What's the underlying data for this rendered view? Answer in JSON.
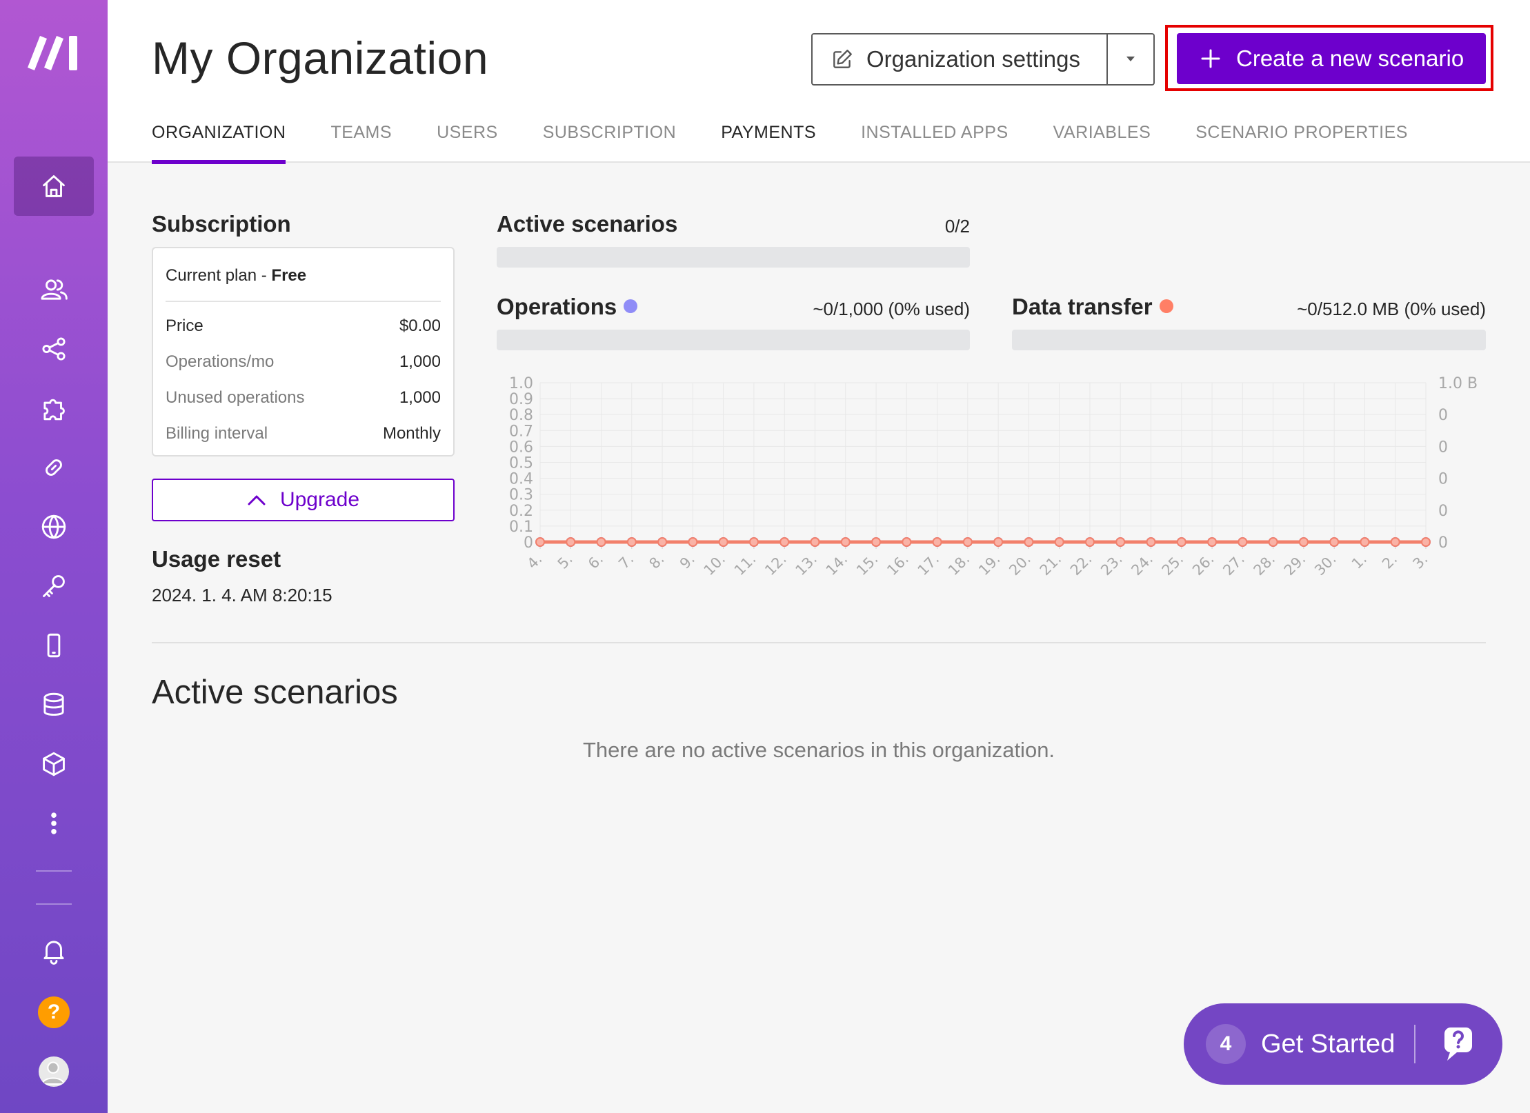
{
  "header": {
    "title": "My Organization",
    "settings_label": "Organization settings",
    "create_label": "Create a new scenario",
    "accent_color": "#6d00cc",
    "highlight_color": "#e50000"
  },
  "tabs": [
    {
      "label": "ORGANIZATION",
      "active": true
    },
    {
      "label": "TEAMS"
    },
    {
      "label": "USERS"
    },
    {
      "label": "SUBSCRIPTION"
    },
    {
      "label": "PAYMENTS"
    },
    {
      "label": "INSTALLED APPS"
    },
    {
      "label": "VARIABLES"
    },
    {
      "label": "SCENARIO PROPERTIES"
    }
  ],
  "sidebar": {
    "items": [
      "home-icon",
      "users-icon",
      "share-icon",
      "puzzle-icon",
      "link-icon",
      "globe-icon",
      "key-icon",
      "mobile-icon",
      "database-icon",
      "box-icon",
      "more-icon"
    ],
    "bottom": [
      "bell-icon",
      "help-icon",
      "avatar"
    ],
    "help_glyph": "?"
  },
  "subscription": {
    "title": "Subscription",
    "plan_prefix": "Current plan - ",
    "plan_name": "Free",
    "rows": [
      {
        "key": "Price",
        "value": "$0.00"
      },
      {
        "key": "Operations/mo",
        "value": "1,000"
      },
      {
        "key": "Unused operations",
        "value": "1,000"
      },
      {
        "key": "Billing interval",
        "value": "Monthly"
      }
    ],
    "upgrade_label": "Upgrade"
  },
  "usage_reset": {
    "title": "Usage reset",
    "value": "2024. 1. 4. AM 8:20:15"
  },
  "stats": {
    "active_scenarios": {
      "label": "Active scenarios",
      "value": "0/2",
      "fraction_used": 0
    },
    "operations": {
      "label": "Operations",
      "value": "~0/1,000 (0% used)",
      "dot_color": "#8f8cf7",
      "fraction_used": 0
    },
    "data_transfer": {
      "label": "Data transfer",
      "value": "~0/512.0 MB (0% used)",
      "dot_color": "#ff7f66",
      "fraction_used": 0
    }
  },
  "chart_data": {
    "type": "line",
    "x": [
      "4.",
      "5.",
      "6.",
      "7.",
      "8.",
      "9.",
      "10.",
      "11.",
      "12.",
      "13.",
      "14.",
      "15.",
      "16.",
      "17.",
      "18.",
      "19.",
      "20.",
      "21.",
      "22.",
      "23.",
      "24.",
      "25.",
      "26.",
      "27.",
      "28.",
      "29.",
      "30.",
      "1.",
      "2.",
      "3."
    ],
    "series": [
      {
        "values": [
          0,
          0,
          0,
          0,
          0,
          0,
          0,
          0,
          0,
          0,
          0,
          0,
          0,
          0,
          0,
          0,
          0,
          0,
          0,
          0,
          0,
          0,
          0,
          0,
          0,
          0,
          0,
          0,
          0,
          0
        ],
        "color": "#8f8cf7",
        "axis": "left"
      },
      {
        "values": [
          0,
          0,
          0,
          0,
          0,
          0,
          0,
          0,
          0,
          0,
          0,
          0,
          0,
          0,
          0,
          0,
          0,
          0,
          0,
          0,
          0,
          0,
          0,
          0,
          0,
          0,
          0,
          0,
          0,
          0
        ],
        "color": "#f2806b",
        "axis": "right"
      }
    ],
    "y_left_ticks": [
      "1.0",
      "0.9",
      "0.8",
      "0.7",
      "0.6",
      "0.5",
      "0.4",
      "0.3",
      "0.2",
      "0.1",
      "0"
    ],
    "y_right_ticks": [
      "1.0 B",
      "0",
      "0",
      "0",
      "0",
      "0"
    ],
    "ylim": [
      0,
      1
    ],
    "grid": true
  },
  "active_section": {
    "title": "Active scenarios",
    "empty_message": "There are no active scenarios in this organization."
  },
  "get_started": {
    "count": "4",
    "label": "Get Started"
  }
}
